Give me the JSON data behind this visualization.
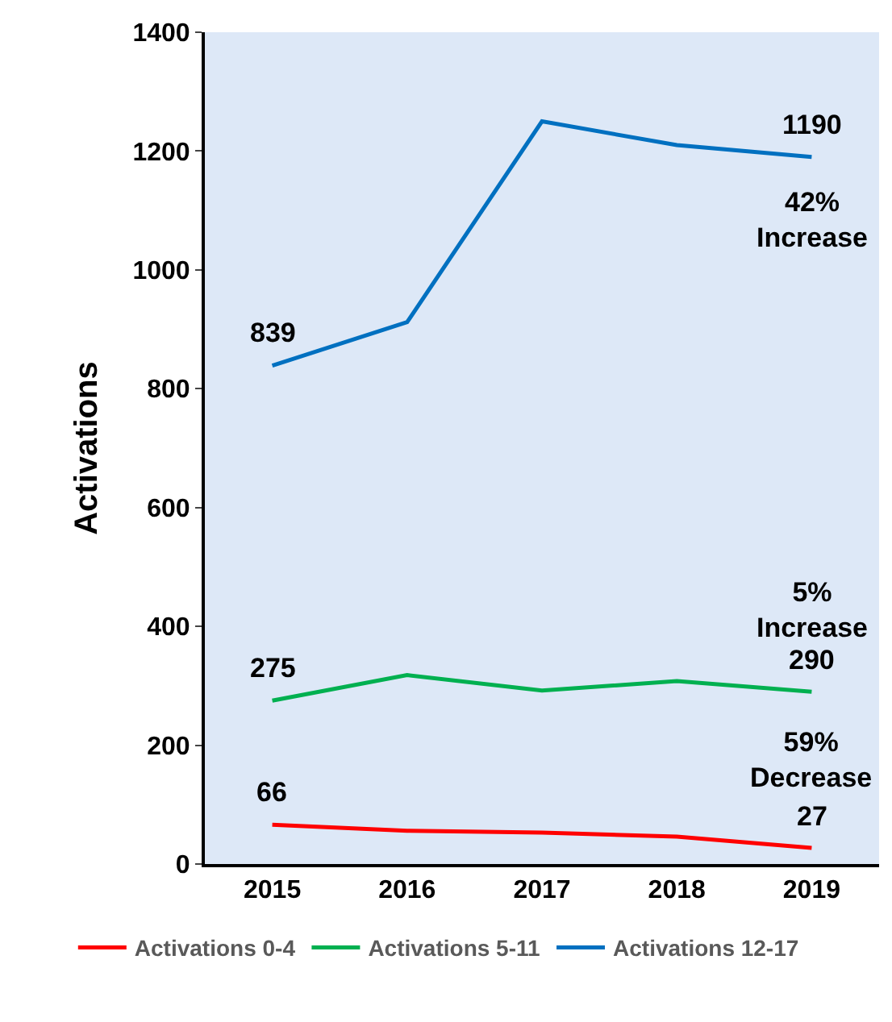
{
  "chart_data": {
    "type": "line",
    "ylabel": "Activations",
    "categories": [
      "2015",
      "2016",
      "2017",
      "2018",
      "2019"
    ],
    "series": [
      {
        "name": "Activations 0-4",
        "color": "#ff0000",
        "values": [
          66,
          56,
          53,
          46,
          27
        ],
        "value_labels": [
          "66",
          null,
          null,
          null,
          "27"
        ]
      },
      {
        "name": "Activations 5-11",
        "color": "#00b050",
        "values": [
          275,
          318,
          292,
          308,
          290
        ],
        "value_labels": [
          "275",
          null,
          null,
          null,
          "290"
        ]
      },
      {
        "name": "Activations 12-17",
        "color": "#0070c0",
        "values": [
          839,
          912,
          1250,
          1210,
          1190
        ],
        "value_labels": [
          "839",
          null,
          null,
          null,
          "1190"
        ]
      }
    ],
    "annotations": [
      "42%\nIncrease",
      "5%\nIncrease",
      "59%\nDecrease"
    ],
    "ylim": [
      0,
      1400
    ],
    "yticks": [
      0,
      200,
      400,
      600,
      800,
      1000,
      1200,
      1400
    ],
    "grid": false,
    "legend": "bottom",
    "marker": "none",
    "line_style": "solid"
  }
}
